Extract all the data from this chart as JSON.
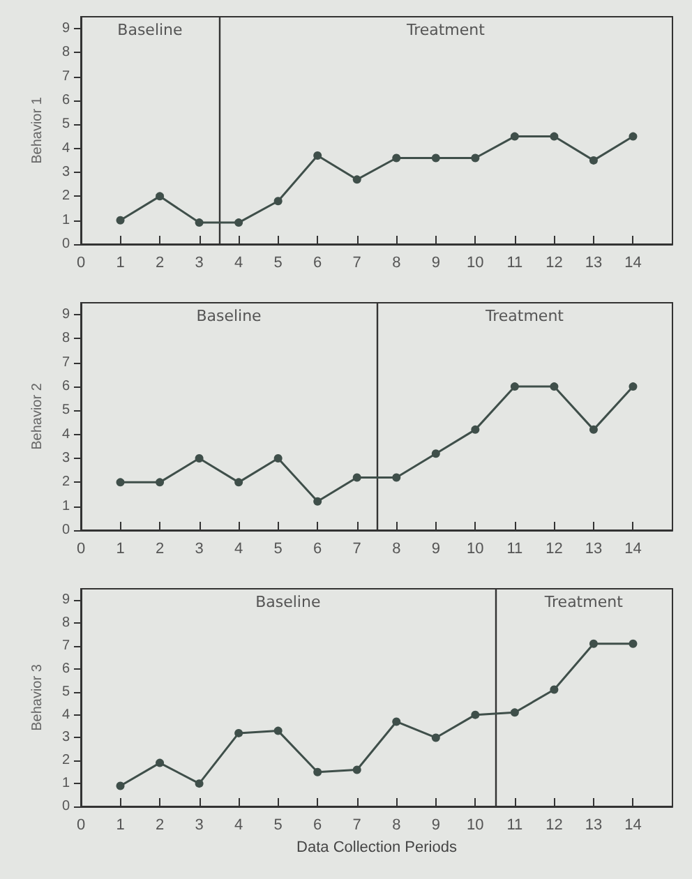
{
  "chart_data": [
    {
      "type": "line",
      "ylabel": "Behavior 1",
      "x": [
        1,
        2,
        3,
        4,
        5,
        6,
        7,
        8,
        9,
        10,
        11,
        12,
        13,
        14
      ],
      "series": [
        {
          "color": "#3f4f4a",
          "values": [
            1,
            2,
            0.9,
            0.9,
            1.8,
            3.7,
            2.7,
            3.6,
            3.6,
            3.6,
            4.5,
            4.5,
            3.5,
            4.5
          ]
        }
      ],
      "xlim": [
        0,
        15
      ],
      "xticks": [
        0,
        1,
        2,
        3,
        4,
        5,
        6,
        7,
        8,
        9,
        10,
        11,
        12,
        13,
        14
      ],
      "ylim": [
        0,
        9.5
      ],
      "yticks": [
        0,
        1,
        2,
        3,
        4,
        5,
        6,
        7,
        8,
        9
      ],
      "ref_lines": [
        {
          "axis": "x",
          "value": 3.5,
          "color": "#333333"
        }
      ],
      "annotations": [
        "Baseline",
        "Treatment"
      ],
      "grid": false,
      "marker": "circle",
      "line_style": "solid"
    },
    {
      "type": "line",
      "ylabel": "Behavior 2",
      "x": [
        1,
        2,
        3,
        4,
        5,
        6,
        7,
        8,
        9,
        10,
        11,
        12,
        13,
        14
      ],
      "series": [
        {
          "color": "#3f4f4a",
          "values": [
            2,
            2,
            3,
            2,
            3,
            1.2,
            2.2,
            2.2,
            3.2,
            4.2,
            6,
            6,
            4.2,
            6
          ]
        }
      ],
      "xlim": [
        0,
        15
      ],
      "xticks": [
        0,
        1,
        2,
        3,
        4,
        5,
        6,
        7,
        8,
        9,
        10,
        11,
        12,
        13,
        14
      ],
      "ylim": [
        0,
        9.5
      ],
      "yticks": [
        0,
        1,
        2,
        3,
        4,
        5,
        6,
        7,
        8,
        9
      ],
      "ref_lines": [
        {
          "axis": "x",
          "value": 7.5,
          "color": "#333333"
        }
      ],
      "annotations": [
        "Baseline",
        "Treatment"
      ],
      "grid": false,
      "marker": "circle",
      "line_style": "solid"
    },
    {
      "type": "line",
      "xlabel": "Data Collection Periods",
      "ylabel": "Behavior 3",
      "x": [
        1,
        2,
        3,
        4,
        5,
        6,
        7,
        8,
        9,
        10,
        11,
        12,
        13,
        14
      ],
      "series": [
        {
          "color": "#3f4f4a",
          "values": [
            0.9,
            1.9,
            1,
            3.2,
            3.3,
            1.5,
            1.6,
            3.7,
            3,
            4,
            4.1,
            5.1,
            7.1,
            7.1
          ]
        }
      ],
      "xlim": [
        0,
        15
      ],
      "xticks": [
        0,
        1,
        2,
        3,
        4,
        5,
        6,
        7,
        8,
        9,
        10,
        11,
        12,
        13,
        14
      ],
      "ylim": [
        0,
        9.5
      ],
      "yticks": [
        0,
        1,
        2,
        3,
        4,
        5,
        6,
        7,
        8,
        9
      ],
      "ref_lines": [
        {
          "axis": "x",
          "value": 10.5,
          "color": "#333333"
        }
      ],
      "annotations": [
        "Baseline",
        "Treatment"
      ],
      "grid": false,
      "marker": "circle",
      "line_style": "solid"
    }
  ]
}
